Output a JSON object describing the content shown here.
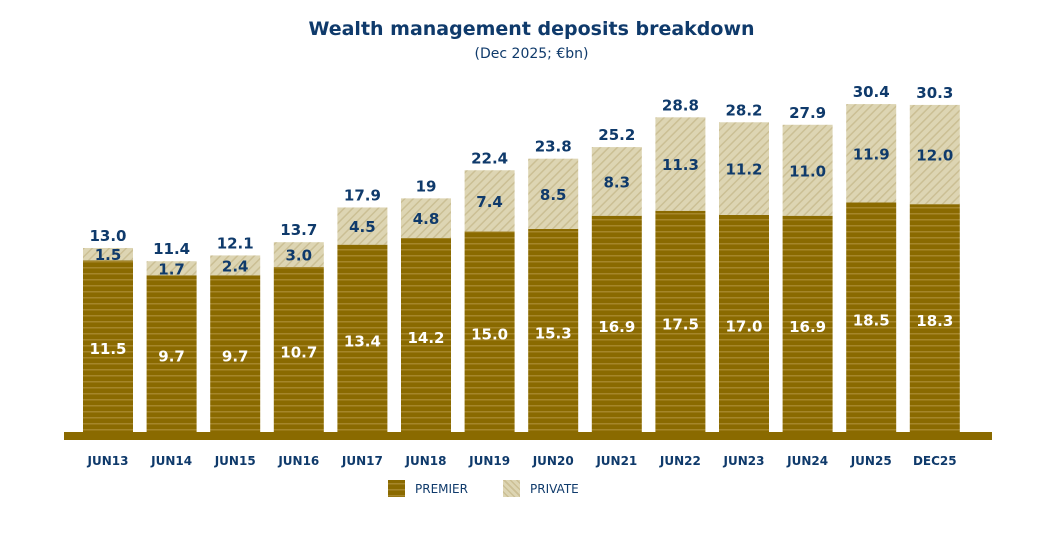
{
  "chart_data": {
    "type": "bar",
    "stacked": true,
    "title": "Wealth management deposits breakdown",
    "subtitle": "(Dec 2025; €bn)",
    "categories": [
      "JUN13",
      "JUN14",
      "JUN15",
      "JUN16",
      "JUN17",
      "JUN18",
      "JUN19",
      "JUN20",
      "JUN21",
      "JUN22",
      "JUN23",
      "JUN24",
      "JUN25",
      "DEC25"
    ],
    "totals": [
      "13.0",
      "11.4",
      "12.1",
      "13.7",
      "17.9",
      "19",
      "22.4",
      "23.8",
      "25.2",
      "28.8",
      "28.2",
      "27.9",
      "30.4",
      "30.3"
    ],
    "series": [
      {
        "name": "PREMIER",
        "color": "#8a6a00",
        "values": [
          11.5,
          9.7,
          9.7,
          10.7,
          13.4,
          14.2,
          15.0,
          15.3,
          16.9,
          17.5,
          17.0,
          16.9,
          18.5,
          18.3
        ],
        "labels": [
          "11.5",
          "9.7",
          "9.7",
          "10.7",
          "13.4",
          "14.2",
          "15.0",
          "15.3",
          "16.9",
          "17.5",
          "17.0",
          "16.9",
          "18.5",
          "18.3"
        ]
      },
      {
        "name": "PRIVATE",
        "color": "#dcd3b0",
        "values": [
          1.5,
          1.7,
          2.4,
          3.0,
          4.5,
          4.8,
          7.4,
          8.5,
          8.3,
          11.3,
          11.2,
          11.0,
          11.9,
          12.0
        ],
        "labels": [
          "1.5",
          "1.7",
          "2.4",
          "3.0",
          "4.5",
          "4.8",
          "7.4",
          "8.5",
          "8.3",
          "11.3",
          "11.2",
          "11.0",
          "11.9",
          "12.0"
        ]
      }
    ],
    "legend_position": "bottom",
    "grid": false
  }
}
